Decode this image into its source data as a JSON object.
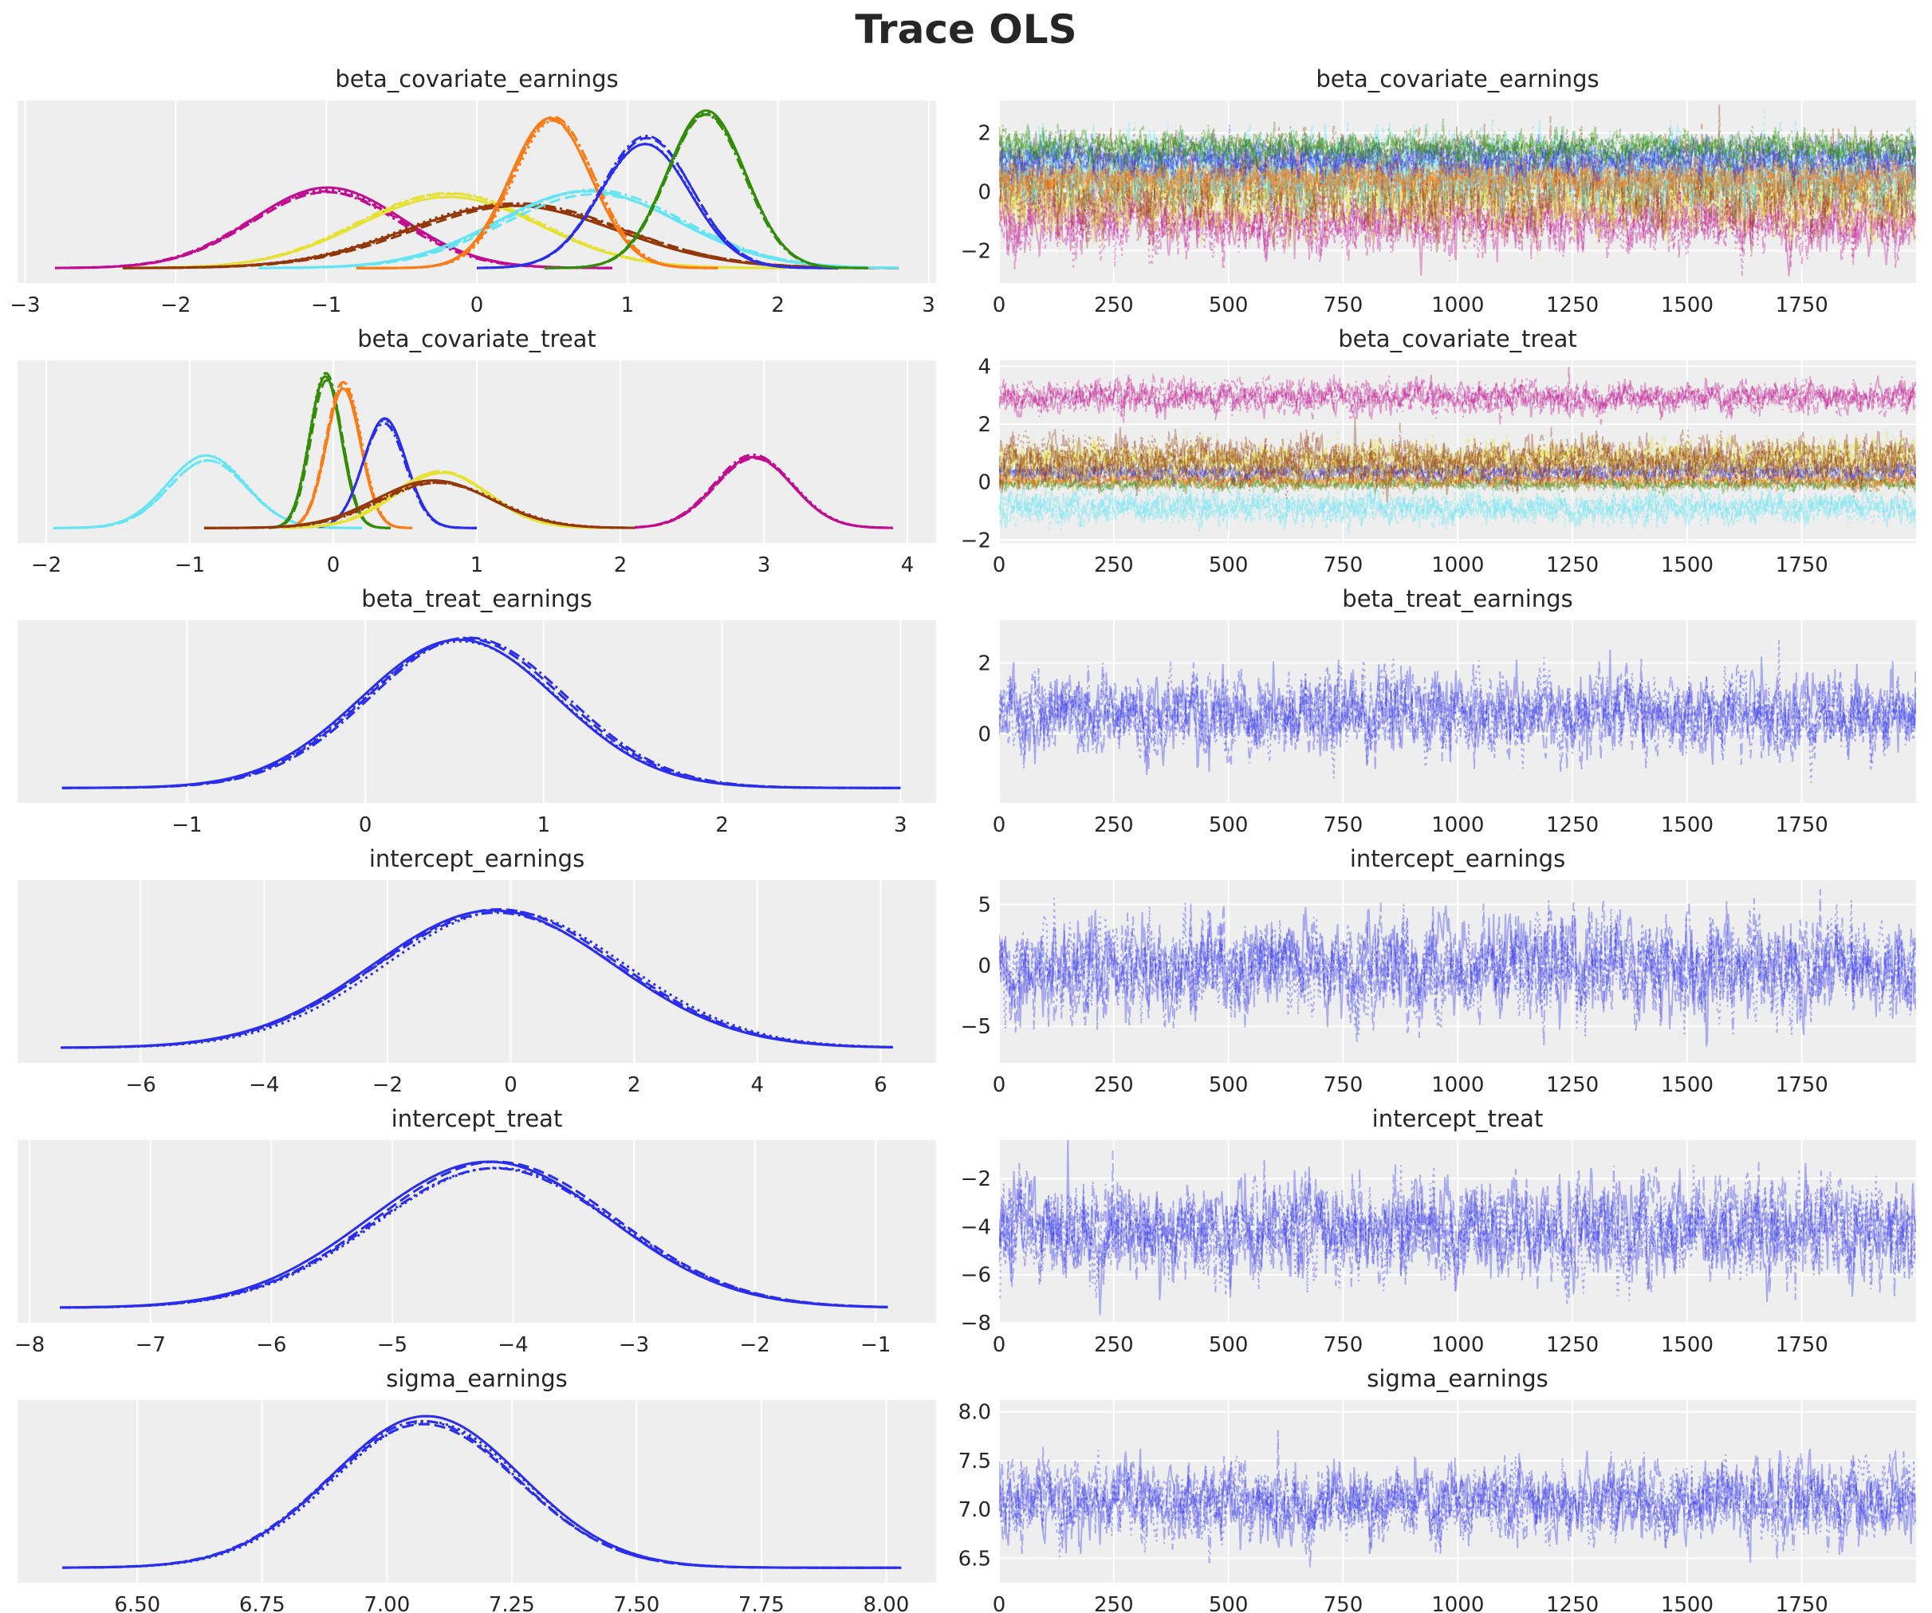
{
  "title": "Trace OLS",
  "chart_data": {
    "type": "line",
    "title": "Trace OLS",
    "layout": "6 rows x 2 columns: left = posterior density (KDE) per chain, right = trace per draw",
    "chains": 4,
    "chain_linestyles": [
      "solid",
      "dashed",
      "dotted",
      "dashdot"
    ],
    "draws_range": [
      0,
      1999
    ],
    "palette": [
      "#2a2eec",
      "#fa7c17",
      "#328c06",
      "#c10c90",
      "#933708",
      "#65e5f3",
      "#e6e135"
    ],
    "background": "#eeeeee",
    "grid": true,
    "variables": [
      {
        "name": "beta_covariate_earnings",
        "kde": {
          "xlim": [
            -3.05,
            3.05
          ],
          "xticks": [
            "−3",
            "−2",
            "−1",
            "0",
            "1",
            "2",
            "3"
          ],
          "xtick_values": [
            -3,
            -2,
            -1,
            0,
            1,
            2,
            3
          ],
          "components": [
            {
              "color": "#c10c90",
              "mean": -1.0,
              "sd": 0.5,
              "peak": 0.52,
              "range": [
                -2.8,
                0.9
              ]
            },
            {
              "color": "#e6e135",
              "mean": -0.2,
              "sd": 0.6,
              "peak": 0.48,
              "range": [
                -2.35,
                2.05
              ]
            },
            {
              "color": "#933708",
              "mean": 0.25,
              "sd": 0.7,
              "peak": 0.42,
              "range": [
                -2.35,
                2.8
              ]
            },
            {
              "color": "#65e5f3",
              "mean": 0.75,
              "sd": 0.6,
              "peak": 0.5,
              "range": [
                -1.45,
                2.8
              ]
            },
            {
              "color": "#fa7c17",
              "mean": 0.5,
              "sd": 0.27,
              "peak": 0.97,
              "range": [
                -0.8,
                1.6
              ]
            },
            {
              "color": "#2a2eec",
              "mean": 1.12,
              "sd": 0.3,
              "peak": 0.84,
              "range": [
                0.0,
                2.4
              ]
            },
            {
              "color": "#328c06",
              "mean": 1.52,
              "sd": 0.26,
              "peak": 1.0,
              "range": [
                0.45,
                2.6
              ]
            }
          ]
        },
        "trace": {
          "ylim": [
            -3.1,
            3.1
          ],
          "yticks": [
            "−2",
            "0",
            "2"
          ],
          "ytick_values": [
            -2,
            0,
            2
          ],
          "xticks": [
            "0",
            "250",
            "500",
            "750",
            "1000",
            "1250",
            "1500",
            "1750"
          ],
          "xtick_values": [
            0,
            250,
            500,
            750,
            1000,
            1250,
            1500,
            1750
          ]
        }
      },
      {
        "name": "beta_covariate_treat",
        "kde": {
          "xlim": [
            -2.2,
            4.2
          ],
          "xticks": [
            "−2",
            "−1",
            "0",
            "1",
            "2",
            "3",
            "4"
          ],
          "xtick_values": [
            -2,
            -1,
            0,
            1,
            2,
            3,
            4
          ],
          "components": [
            {
              "color": "#65e5f3",
              "mean": -0.88,
              "sd": 0.27,
              "peak": 0.46,
              "range": [
                -1.95,
                0.2
              ]
            },
            {
              "color": "#328c06",
              "mean": -0.05,
              "sd": 0.11,
              "peak": 1.0,
              "range": [
                -0.45,
                0.4
              ]
            },
            {
              "color": "#fa7c17",
              "mean": 0.07,
              "sd": 0.12,
              "peak": 0.95,
              "range": [
                -0.25,
                0.55
              ]
            },
            {
              "color": "#2a2eec",
              "mean": 0.36,
              "sd": 0.15,
              "peak": 0.7,
              "range": [
                -0.1,
                1.0
              ]
            },
            {
              "color": "#e6e135",
              "mean": 0.75,
              "sd": 0.33,
              "peak": 0.36,
              "range": [
                -0.35,
                1.9
              ]
            },
            {
              "color": "#933708",
              "mean": 0.72,
              "sd": 0.4,
              "peak": 0.3,
              "range": [
                -0.9,
                2.1
              ]
            },
            {
              "color": "#c10c90",
              "mean": 2.93,
              "sd": 0.27,
              "peak": 0.47,
              "range": [
                2.1,
                3.9
              ]
            }
          ]
        },
        "trace": {
          "ylim": [
            -2.1,
            4.2
          ],
          "yticks": [
            "−2",
            "0",
            "2",
            "4"
          ],
          "ytick_values": [
            -2,
            0,
            2,
            4
          ],
          "xticks": [
            "0",
            "250",
            "500",
            "750",
            "1000",
            "1250",
            "1500",
            "1750"
          ],
          "xtick_values": [
            0,
            250,
            500,
            750,
            1000,
            1250,
            1500,
            1750
          ]
        }
      },
      {
        "name": "beta_treat_earnings",
        "kde": {
          "xlim": [
            -1.95,
            3.2
          ],
          "xticks": [
            "−1",
            "0",
            "1",
            "2",
            "3"
          ],
          "xtick_values": [
            -1,
            0,
            1,
            2,
            3
          ],
          "components": [
            {
              "color": "#2a2eec",
              "mean": 0.55,
              "sd": 0.55,
              "peak": 1.0,
              "range": [
                -1.7,
                3.0
              ]
            }
          ]
        },
        "trace": {
          "ylim": [
            -1.95,
            3.2
          ],
          "yticks": [
            "0",
            "2"
          ],
          "ytick_values": [
            0,
            2
          ],
          "xticks": [
            "0",
            "250",
            "500",
            "750",
            "1000",
            "1250",
            "1500",
            "1750"
          ],
          "xtick_values": [
            0,
            250,
            500,
            750,
            1000,
            1250,
            1500,
            1750
          ]
        }
      },
      {
        "name": "intercept_earnings",
        "kde": {
          "xlim": [
            -8.0,
            6.9
          ],
          "xticks": [
            "−6",
            "−4",
            "−2",
            "0",
            "2",
            "4",
            "6"
          ],
          "xtick_values": [
            -6,
            -4,
            -2,
            0,
            2,
            4,
            6
          ],
          "components": [
            {
              "color": "#2a2eec",
              "mean": -0.2,
              "sd": 1.95,
              "peak": 0.92,
              "range": [
                -7.3,
                6.2
              ]
            }
          ]
        },
        "trace": {
          "ylim": [
            -8.0,
            7.0
          ],
          "yticks": [
            "−5",
            "0",
            "5"
          ],
          "ytick_values": [
            -5,
            0,
            5
          ],
          "xticks": [
            "0",
            "250",
            "500",
            "750",
            "1000",
            "1250",
            "1500",
            "1750"
          ],
          "xtick_values": [
            0,
            250,
            500,
            750,
            1000,
            1250,
            1500,
            1750
          ]
        }
      },
      {
        "name": "intercept_treat",
        "kde": {
          "xlim": [
            -8.1,
            -0.5
          ],
          "xticks": [
            "−8",
            "−7",
            "−6",
            "−5",
            "−4",
            "−3",
            "−2",
            "−1"
          ],
          "xtick_values": [
            -8,
            -7,
            -6,
            -5,
            -4,
            -3,
            -2,
            -1
          ],
          "components": [
            {
              "color": "#2a2eec",
              "mean": -4.15,
              "sd": 1.0,
              "peak": 0.95,
              "range": [
                -7.75,
                -0.9
              ]
            }
          ]
        },
        "trace": {
          "ylim": [
            -8.0,
            -0.4
          ],
          "yticks": [
            "−8",
            "−6",
            "−4",
            "−2"
          ],
          "ytick_values": [
            -8,
            -6,
            -4,
            -2
          ],
          "xticks": [
            "0",
            "250",
            "500",
            "750",
            "1000",
            "1250",
            "1500",
            "1750"
          ],
          "xtick_values": [
            0,
            250,
            500,
            750,
            1000,
            1250,
            1500,
            1750
          ]
        }
      },
      {
        "name": "sigma_earnings",
        "kde": {
          "xlim": [
            6.26,
            8.1
          ],
          "xticks": [
            "6.50",
            "6.75",
            "7.00",
            "7.25",
            "7.50",
            "7.75",
            "8.00"
          ],
          "xtick_values": [
            6.5,
            6.75,
            7.0,
            7.25,
            7.5,
            7.75,
            8.0
          ],
          "components": [
            {
              "color": "#2a2eec",
              "mean": 7.08,
              "sd": 0.19,
              "peak": 0.98,
              "range": [
                6.35,
                8.03
              ]
            }
          ]
        },
        "trace": {
          "ylim": [
            6.25,
            8.12
          ],
          "yticks": [
            "6.5",
            "7.0",
            "7.5",
            "8.0"
          ],
          "ytick_values": [
            6.5,
            7.0,
            7.5,
            8.0
          ],
          "xticks": [
            "0",
            "250",
            "500",
            "750",
            "1000",
            "1250",
            "1500",
            "1750"
          ],
          "xtick_values": [
            0,
            250,
            500,
            750,
            1000,
            1250,
            1500,
            1750
          ]
        }
      }
    ]
  }
}
